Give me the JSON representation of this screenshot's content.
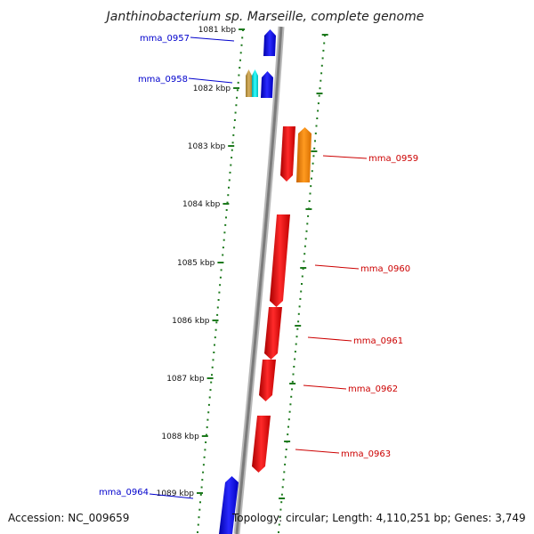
{
  "title": "Janthinobacterium sp. Marseille, complete genome",
  "footer": {
    "accession": "Accession: NC_009659",
    "summary": "Topology: circular; Length: 4,110,251 bp; Genes: 3,749"
  },
  "colors": {
    "backbone": "#8a8a8a",
    "tick": "#1e7a1e",
    "label_left": "#0000cc",
    "label_right": "#cc0000",
    "blue": "#0000ee",
    "red": "#ee0000",
    "orange": "#ff8800",
    "cyan": "#00e5e5",
    "tan": "#c8a050"
  },
  "ticks": [
    {
      "label": "1081 kbp"
    },
    {
      "label": "1082 kbp"
    },
    {
      "label": "1083 kbp"
    },
    {
      "label": "1084 kbp"
    },
    {
      "label": "1085 kbp"
    },
    {
      "label": "1086 kbp"
    },
    {
      "label": "1087 kbp"
    },
    {
      "label": "1088 kbp"
    },
    {
      "label": "1089 kbp"
    }
  ],
  "genes": [
    {
      "id": "mma_0957",
      "label": "mma_0957",
      "side": "left"
    },
    {
      "id": "mma_0958",
      "label": "mma_0958",
      "side": "left"
    },
    {
      "id": "mma_0959",
      "label": "mma_0959",
      "side": "right"
    },
    {
      "id": "mma_0960",
      "label": "mma_0960",
      "side": "right"
    },
    {
      "id": "mma_0961",
      "label": "mma_0961",
      "side": "right"
    },
    {
      "id": "mma_0962",
      "label": "mma_0962",
      "side": "right"
    },
    {
      "id": "mma_0963",
      "label": "mma_0963",
      "side": "right"
    },
    {
      "id": "mma_0964",
      "label": "mma_0964",
      "side": "left"
    }
  ]
}
